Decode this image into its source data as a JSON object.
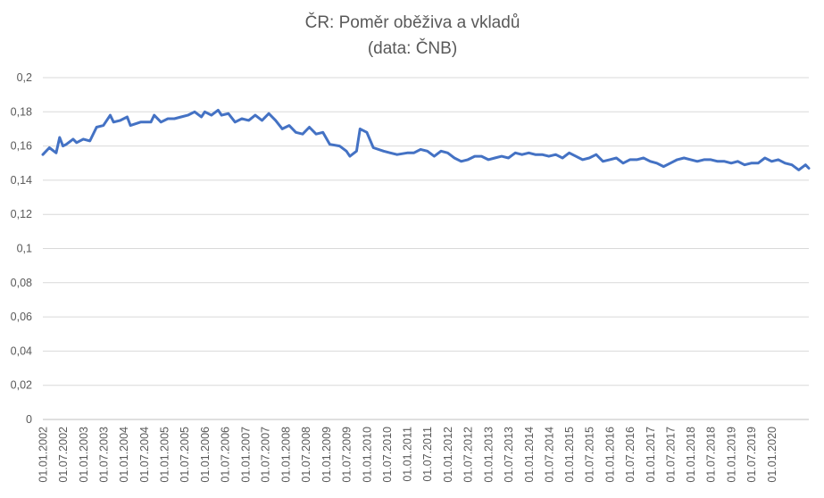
{
  "chart_data": {
    "type": "line",
    "title": "ČR: Poměr oběživa a vkladů",
    "subtitle": "(data: ČNB)",
    "xlabel": "",
    "ylabel": "",
    "ylim": [
      0,
      0.2
    ],
    "yticks": [
      {
        "value": 0,
        "label": "0"
      },
      {
        "value": 0.02,
        "label": "0,02"
      },
      {
        "value": 0.04,
        "label": "0,04"
      },
      {
        "value": 0.06,
        "label": "0,06"
      },
      {
        "value": 0.08,
        "label": "0,08"
      },
      {
        "value": 0.1,
        "label": "0,1"
      },
      {
        "value": 0.12,
        "label": "0,12"
      },
      {
        "value": 0.14,
        "label": "0,14"
      },
      {
        "value": 0.16,
        "label": "0,16"
      },
      {
        "value": 0.18,
        "label": "0,18"
      },
      {
        "value": 0.2,
        "label": "0,2"
      }
    ],
    "xlim": [
      "2002-01-01",
      "2020-12-01"
    ],
    "xticks": [
      "01.01.2002",
      "01.07.2002",
      "01.01.2003",
      "01.07.2003",
      "01.01.2004",
      "01.07.2004",
      "01.01.2005",
      "01.07.2005",
      "01.01.2006",
      "01.07.2006",
      "01.01.2007",
      "01.07.2007",
      "01.01.2008",
      "01.07.2008",
      "01.01.2009",
      "01.07.2009",
      "01.01.2010",
      "01.07.2010",
      "01.01.2011",
      "01.07.2011",
      "01.01.2012",
      "01.07.2012",
      "01.01.2013",
      "01.07.2013",
      "01.01.2014",
      "01.07.2014",
      "01.01.2015",
      "01.07.2015",
      "01.01.2016",
      "01.07.2016",
      "01.01.2017",
      "01.07.2017",
      "01.01.2018",
      "01.07.2018",
      "01.01.2019",
      "01.07.2019",
      "01.01.2020"
    ],
    "grid": true,
    "legend": "none",
    "colors": {
      "series": "#4472c4",
      "grid": "#d9d9d9",
      "text": "#595959"
    },
    "series": [
      {
        "points": [
          {
            "x": "2002-01-01",
            "y": 0.155
          },
          {
            "x": "2002-03-01",
            "y": 0.159
          },
          {
            "x": "2002-05-01",
            "y": 0.156
          },
          {
            "x": "2002-06-01",
            "y": 0.165
          },
          {
            "x": "2002-07-01",
            "y": 0.16
          },
          {
            "x": "2002-08-01",
            "y": 0.161
          },
          {
            "x": "2002-10-01",
            "y": 0.164
          },
          {
            "x": "2002-11-01",
            "y": 0.162
          },
          {
            "x": "2003-01-01",
            "y": 0.164
          },
          {
            "x": "2003-03-01",
            "y": 0.163
          },
          {
            "x": "2003-05-01",
            "y": 0.171
          },
          {
            "x": "2003-07-01",
            "y": 0.172
          },
          {
            "x": "2003-09-01",
            "y": 0.178
          },
          {
            "x": "2003-10-01",
            "y": 0.174
          },
          {
            "x": "2003-12-01",
            "y": 0.175
          },
          {
            "x": "2004-02-01",
            "y": 0.177
          },
          {
            "x": "2004-03-01",
            "y": 0.172
          },
          {
            "x": "2004-06-01",
            "y": 0.174
          },
          {
            "x": "2004-09-01",
            "y": 0.174
          },
          {
            "x": "2004-10-01",
            "y": 0.178
          },
          {
            "x": "2004-12-01",
            "y": 0.174
          },
          {
            "x": "2005-02-01",
            "y": 0.176
          },
          {
            "x": "2005-04-01",
            "y": 0.176
          },
          {
            "x": "2005-06-01",
            "y": 0.177
          },
          {
            "x": "2005-08-01",
            "y": 0.178
          },
          {
            "x": "2005-10-01",
            "y": 0.18
          },
          {
            "x": "2005-12-01",
            "y": 0.177
          },
          {
            "x": "2006-01-01",
            "y": 0.18
          },
          {
            "x": "2006-03-01",
            "y": 0.178
          },
          {
            "x": "2006-05-01",
            "y": 0.181
          },
          {
            "x": "2006-06-01",
            "y": 0.178
          },
          {
            "x": "2006-08-01",
            "y": 0.179
          },
          {
            "x": "2006-10-01",
            "y": 0.174
          },
          {
            "x": "2006-12-01",
            "y": 0.176
          },
          {
            "x": "2007-02-01",
            "y": 0.175
          },
          {
            "x": "2007-04-01",
            "y": 0.178
          },
          {
            "x": "2007-06-01",
            "y": 0.175
          },
          {
            "x": "2007-08-01",
            "y": 0.179
          },
          {
            "x": "2007-10-01",
            "y": 0.175
          },
          {
            "x": "2007-12-01",
            "y": 0.17
          },
          {
            "x": "2008-02-01",
            "y": 0.172
          },
          {
            "x": "2008-04-01",
            "y": 0.168
          },
          {
            "x": "2008-06-01",
            "y": 0.167
          },
          {
            "x": "2008-08-01",
            "y": 0.171
          },
          {
            "x": "2008-10-01",
            "y": 0.167
          },
          {
            "x": "2008-12-01",
            "y": 0.168
          },
          {
            "x": "2009-02-01",
            "y": 0.161
          },
          {
            "x": "2009-05-01",
            "y": 0.16
          },
          {
            "x": "2009-07-01",
            "y": 0.157
          },
          {
            "x": "2009-08-01",
            "y": 0.154
          },
          {
            "x": "2009-10-01",
            "y": 0.157
          },
          {
            "x": "2009-11-01",
            "y": 0.17
          },
          {
            "x": "2010-01-01",
            "y": 0.168
          },
          {
            "x": "2010-03-01",
            "y": 0.159
          },
          {
            "x": "2010-06-01",
            "y": 0.157
          },
          {
            "x": "2010-08-01",
            "y": 0.156
          },
          {
            "x": "2010-10-01",
            "y": 0.155
          },
          {
            "x": "2011-01-01",
            "y": 0.156
          },
          {
            "x": "2011-03-01",
            "y": 0.156
          },
          {
            "x": "2011-05-01",
            "y": 0.158
          },
          {
            "x": "2011-07-01",
            "y": 0.157
          },
          {
            "x": "2011-09-01",
            "y": 0.154
          },
          {
            "x": "2011-11-01",
            "y": 0.157
          },
          {
            "x": "2012-01-01",
            "y": 0.156
          },
          {
            "x": "2012-03-01",
            "y": 0.153
          },
          {
            "x": "2012-05-01",
            "y": 0.151
          },
          {
            "x": "2012-07-01",
            "y": 0.152
          },
          {
            "x": "2012-09-01",
            "y": 0.154
          },
          {
            "x": "2012-11-01",
            "y": 0.154
          },
          {
            "x": "2013-01-01",
            "y": 0.152
          },
          {
            "x": "2013-03-01",
            "y": 0.153
          },
          {
            "x": "2013-05-01",
            "y": 0.154
          },
          {
            "x": "2013-07-01",
            "y": 0.153
          },
          {
            "x": "2013-09-01",
            "y": 0.156
          },
          {
            "x": "2013-11-01",
            "y": 0.155
          },
          {
            "x": "2014-01-01",
            "y": 0.156
          },
          {
            "x": "2014-03-01",
            "y": 0.155
          },
          {
            "x": "2014-05-01",
            "y": 0.155
          },
          {
            "x": "2014-07-01",
            "y": 0.154
          },
          {
            "x": "2014-09-01",
            "y": 0.155
          },
          {
            "x": "2014-11-01",
            "y": 0.153
          },
          {
            "x": "2015-01-01",
            "y": 0.156
          },
          {
            "x": "2015-03-01",
            "y": 0.154
          },
          {
            "x": "2015-05-01",
            "y": 0.152
          },
          {
            "x": "2015-07-01",
            "y": 0.153
          },
          {
            "x": "2015-09-01",
            "y": 0.155
          },
          {
            "x": "2015-11-01",
            "y": 0.151
          },
          {
            "x": "2016-01-01",
            "y": 0.152
          },
          {
            "x": "2016-03-01",
            "y": 0.153
          },
          {
            "x": "2016-05-01",
            "y": 0.15
          },
          {
            "x": "2016-07-01",
            "y": 0.152
          },
          {
            "x": "2016-09-01",
            "y": 0.152
          },
          {
            "x": "2016-11-01",
            "y": 0.153
          },
          {
            "x": "2017-01-01",
            "y": 0.151
          },
          {
            "x": "2017-03-01",
            "y": 0.15
          },
          {
            "x": "2017-05-01",
            "y": 0.148
          },
          {
            "x": "2017-07-01",
            "y": 0.15
          },
          {
            "x": "2017-09-01",
            "y": 0.152
          },
          {
            "x": "2017-11-01",
            "y": 0.153
          },
          {
            "x": "2018-01-01",
            "y": 0.152
          },
          {
            "x": "2018-03-01",
            "y": 0.151
          },
          {
            "x": "2018-05-01",
            "y": 0.152
          },
          {
            "x": "2018-07-01",
            "y": 0.152
          },
          {
            "x": "2018-09-01",
            "y": 0.151
          },
          {
            "x": "2018-11-01",
            "y": 0.151
          },
          {
            "x": "2019-01-01",
            "y": 0.15
          },
          {
            "x": "2019-03-01",
            "y": 0.151
          },
          {
            "x": "2019-05-01",
            "y": 0.149
          },
          {
            "x": "2019-07-01",
            "y": 0.15
          },
          {
            "x": "2019-09-01",
            "y": 0.15
          },
          {
            "x": "2019-11-01",
            "y": 0.153
          },
          {
            "x": "2020-01-01",
            "y": 0.151
          },
          {
            "x": "2020-03-01",
            "y": 0.152
          },
          {
            "x": "2020-05-01",
            "y": 0.15
          },
          {
            "x": "2020-07-01",
            "y": 0.149
          },
          {
            "x": "2020-09-01",
            "y": 0.146
          },
          {
            "x": "2020-11-01",
            "y": 0.149
          },
          {
            "x": "2020-12-01",
            "y": 0.147
          }
        ]
      }
    ]
  }
}
